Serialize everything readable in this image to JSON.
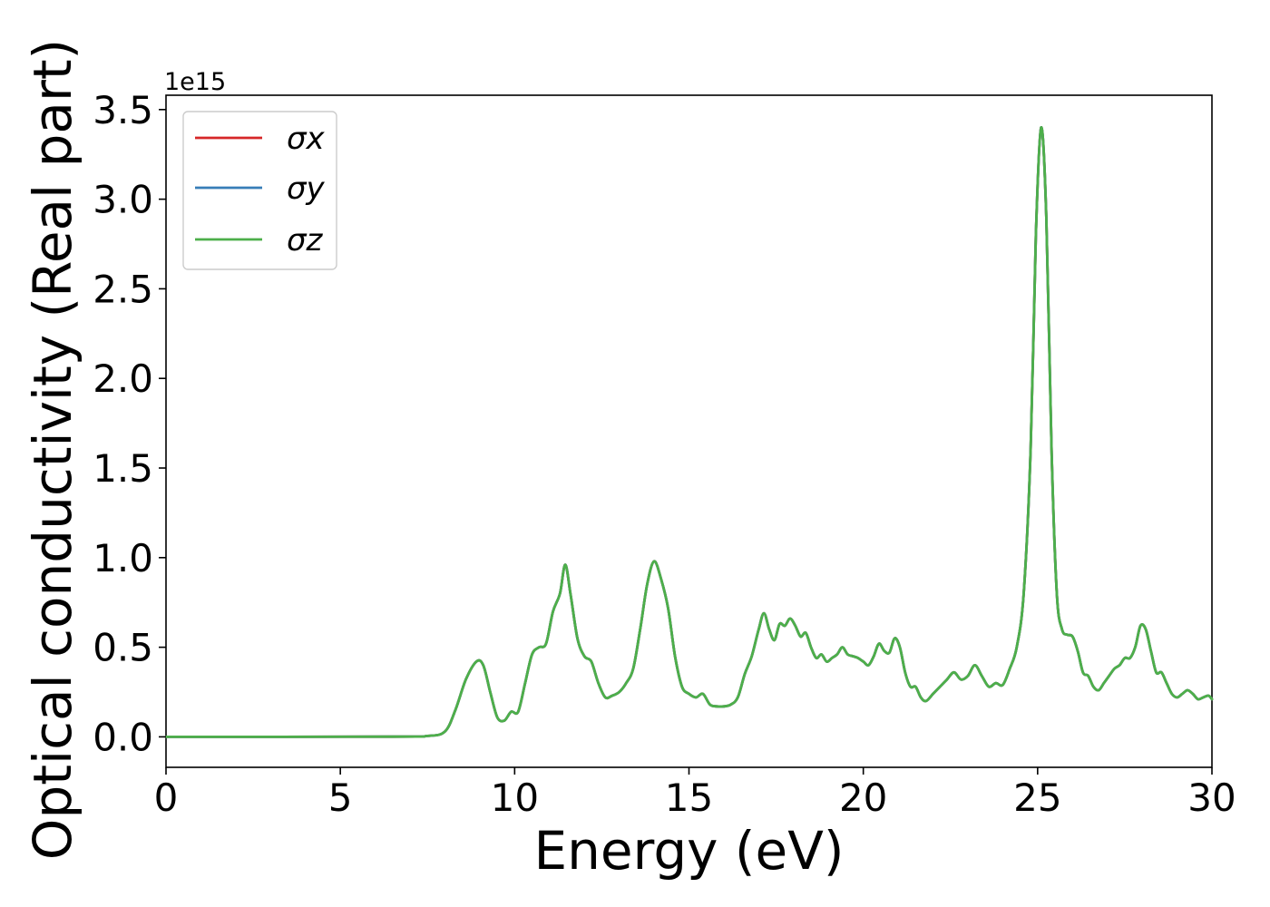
{
  "chart_data": {
    "type": "line",
    "title": "",
    "xlabel": "Energy (eV)",
    "ylabel": "Optical conductivity (Real part)",
    "y_offset_label": "1e15",
    "xlim": [
      0,
      30
    ],
    "ylim": [
      -0.17,
      3.58
    ],
    "x_ticks": [
      0,
      5,
      10,
      15,
      20,
      25,
      30
    ],
    "y_ticks": [
      0.0,
      0.5,
      1.0,
      1.5,
      2.0,
      2.5,
      3.0,
      3.5
    ],
    "x_tick_labels": [
      "0",
      "5",
      "10",
      "15",
      "20",
      "25",
      "30"
    ],
    "y_tick_labels": [
      "0.0",
      "0.5",
      "1.0",
      "1.5",
      "2.0",
      "2.5",
      "3.0",
      "3.5"
    ],
    "grid": false,
    "legend_position": "top-left",
    "x": [
      0,
      6.5,
      7.5,
      8.0,
      8.3,
      8.6,
      8.9,
      9.1,
      9.3,
      9.5,
      9.7,
      9.9,
      10.1,
      10.3,
      10.5,
      10.7,
      10.9,
      11.1,
      11.3,
      11.45,
      11.6,
      11.8,
      12.0,
      12.2,
      12.4,
      12.6,
      12.8,
      13.0,
      13.2,
      13.4,
      13.6,
      13.8,
      14.0,
      14.2,
      14.4,
      14.6,
      14.8,
      15.0,
      15.2,
      15.4,
      15.6,
      15.8,
      16.0,
      16.2,
      16.4,
      16.6,
      16.8,
      17.0,
      17.15,
      17.3,
      17.45,
      17.6,
      17.75,
      17.9,
      18.05,
      18.2,
      18.35,
      18.5,
      18.65,
      18.8,
      18.95,
      19.1,
      19.25,
      19.4,
      19.55,
      19.7,
      19.85,
      20.0,
      20.15,
      20.3,
      20.45,
      20.6,
      20.75,
      20.9,
      21.05,
      21.2,
      21.35,
      21.5,
      21.65,
      21.8,
      22.0,
      22.2,
      22.4,
      22.6,
      22.8,
      23.0,
      23.2,
      23.4,
      23.6,
      23.8,
      24.0,
      24.2,
      24.4,
      24.6,
      24.8,
      24.95,
      25.1,
      25.25,
      25.4,
      25.55,
      25.7,
      25.85,
      26.0,
      26.15,
      26.3,
      26.45,
      26.6,
      26.75,
      26.9,
      27.05,
      27.2,
      27.35,
      27.5,
      27.65,
      27.8,
      27.95,
      28.1,
      28.25,
      28.4,
      28.55,
      28.7,
      28.85,
      29.0,
      29.15,
      29.3,
      29.45,
      29.6,
      29.75,
      29.9,
      30.0
    ],
    "series": [
      {
        "name": "σx",
        "color": "#d62728",
        "values": [
          0.0,
          0.001,
          0.005,
          0.03,
          0.15,
          0.32,
          0.42,
          0.4,
          0.25,
          0.11,
          0.09,
          0.14,
          0.14,
          0.3,
          0.46,
          0.5,
          0.52,
          0.7,
          0.8,
          0.96,
          0.8,
          0.55,
          0.45,
          0.42,
          0.3,
          0.22,
          0.23,
          0.25,
          0.3,
          0.38,
          0.6,
          0.85,
          0.98,
          0.88,
          0.72,
          0.45,
          0.28,
          0.24,
          0.22,
          0.24,
          0.18,
          0.17,
          0.17,
          0.18,
          0.22,
          0.35,
          0.45,
          0.6,
          0.69,
          0.6,
          0.54,
          0.63,
          0.62,
          0.66,
          0.62,
          0.56,
          0.58,
          0.5,
          0.44,
          0.46,
          0.42,
          0.44,
          0.46,
          0.5,
          0.46,
          0.45,
          0.44,
          0.42,
          0.4,
          0.45,
          0.52,
          0.48,
          0.47,
          0.55,
          0.5,
          0.36,
          0.28,
          0.28,
          0.22,
          0.2,
          0.24,
          0.28,
          0.32,
          0.36,
          0.32,
          0.34,
          0.4,
          0.34,
          0.28,
          0.3,
          0.29,
          0.38,
          0.5,
          0.8,
          1.6,
          2.8,
          3.4,
          2.9,
          1.6,
          0.8,
          0.6,
          0.57,
          0.56,
          0.48,
          0.36,
          0.34,
          0.28,
          0.26,
          0.3,
          0.34,
          0.38,
          0.4,
          0.44,
          0.44,
          0.5,
          0.62,
          0.6,
          0.48,
          0.36,
          0.36,
          0.3,
          0.24,
          0.22,
          0.24,
          0.26,
          0.24,
          0.21,
          0.22,
          0.23,
          0.21
        ]
      },
      {
        "name": "σy",
        "color": "#377eb8",
        "values": [
          0.0,
          0.001,
          0.005,
          0.03,
          0.15,
          0.32,
          0.42,
          0.4,
          0.25,
          0.11,
          0.09,
          0.14,
          0.14,
          0.3,
          0.46,
          0.5,
          0.52,
          0.7,
          0.8,
          0.96,
          0.8,
          0.55,
          0.45,
          0.42,
          0.3,
          0.22,
          0.23,
          0.25,
          0.3,
          0.38,
          0.6,
          0.85,
          0.98,
          0.88,
          0.72,
          0.45,
          0.28,
          0.24,
          0.22,
          0.24,
          0.18,
          0.17,
          0.17,
          0.18,
          0.22,
          0.35,
          0.45,
          0.6,
          0.69,
          0.6,
          0.54,
          0.63,
          0.62,
          0.66,
          0.62,
          0.56,
          0.58,
          0.5,
          0.44,
          0.46,
          0.42,
          0.44,
          0.46,
          0.5,
          0.46,
          0.45,
          0.44,
          0.42,
          0.4,
          0.45,
          0.52,
          0.48,
          0.47,
          0.55,
          0.5,
          0.36,
          0.28,
          0.28,
          0.22,
          0.2,
          0.24,
          0.28,
          0.32,
          0.36,
          0.32,
          0.34,
          0.4,
          0.34,
          0.28,
          0.3,
          0.29,
          0.38,
          0.5,
          0.8,
          1.6,
          2.8,
          3.4,
          2.9,
          1.6,
          0.8,
          0.6,
          0.57,
          0.56,
          0.48,
          0.36,
          0.34,
          0.28,
          0.26,
          0.3,
          0.34,
          0.38,
          0.4,
          0.44,
          0.44,
          0.5,
          0.62,
          0.6,
          0.48,
          0.36,
          0.36,
          0.3,
          0.24,
          0.22,
          0.24,
          0.26,
          0.24,
          0.21,
          0.22,
          0.23,
          0.21
        ]
      },
      {
        "name": "σz",
        "color": "#4daf4a",
        "values": [
          0.0,
          0.001,
          0.005,
          0.03,
          0.15,
          0.32,
          0.42,
          0.4,
          0.25,
          0.11,
          0.09,
          0.14,
          0.14,
          0.3,
          0.46,
          0.5,
          0.52,
          0.7,
          0.8,
          0.96,
          0.8,
          0.55,
          0.45,
          0.42,
          0.3,
          0.22,
          0.23,
          0.25,
          0.3,
          0.38,
          0.6,
          0.85,
          0.98,
          0.88,
          0.72,
          0.45,
          0.28,
          0.24,
          0.22,
          0.24,
          0.18,
          0.17,
          0.17,
          0.18,
          0.22,
          0.35,
          0.45,
          0.6,
          0.69,
          0.6,
          0.54,
          0.63,
          0.62,
          0.66,
          0.62,
          0.56,
          0.58,
          0.5,
          0.44,
          0.46,
          0.42,
          0.44,
          0.46,
          0.5,
          0.46,
          0.45,
          0.44,
          0.42,
          0.4,
          0.45,
          0.52,
          0.48,
          0.47,
          0.55,
          0.5,
          0.36,
          0.28,
          0.28,
          0.22,
          0.2,
          0.24,
          0.28,
          0.32,
          0.36,
          0.32,
          0.34,
          0.4,
          0.34,
          0.28,
          0.3,
          0.29,
          0.38,
          0.5,
          0.8,
          1.6,
          2.8,
          3.4,
          2.9,
          1.6,
          0.8,
          0.6,
          0.57,
          0.56,
          0.48,
          0.36,
          0.34,
          0.28,
          0.26,
          0.3,
          0.34,
          0.38,
          0.4,
          0.44,
          0.44,
          0.5,
          0.62,
          0.6,
          0.48,
          0.36,
          0.36,
          0.3,
          0.24,
          0.22,
          0.24,
          0.26,
          0.24,
          0.21,
          0.22,
          0.23,
          0.21
        ]
      }
    ]
  }
}
